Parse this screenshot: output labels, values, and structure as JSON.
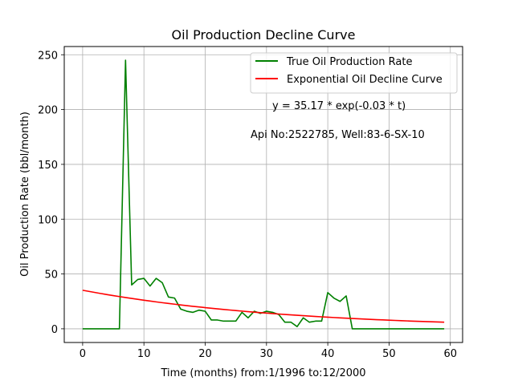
{
  "chart_data": {
    "type": "line",
    "title": "Oil Production Decline Curve",
    "xlabel": "Time (months) from:1/1996 to:12/2000",
    "ylabel": "Oil Production Rate (bbl/month)",
    "xlim": [
      -3,
      62
    ],
    "ylim": [
      -12.5,
      257.5
    ],
    "xticks": [
      0,
      10,
      20,
      30,
      40,
      50,
      60
    ],
    "yticks": [
      0,
      50,
      100,
      150,
      200,
      250
    ],
    "grid": true,
    "legend_position": "top-right",
    "annotations": [
      "y = 35.17 * exp(-0.03 * t)",
      "Api No:2522785, Well:83-6-SX-10"
    ],
    "fit": {
      "a": 35.17,
      "b": -0.03
    },
    "series": [
      {
        "name": "True Oil Production Rate",
        "color": "#008000",
        "x": [
          0,
          1,
          2,
          3,
          4,
          5,
          6,
          7,
          8,
          9,
          10,
          11,
          12,
          13,
          14,
          15,
          16,
          17,
          18,
          19,
          20,
          21,
          22,
          23,
          24,
          25,
          26,
          27,
          28,
          29,
          30,
          31,
          32,
          33,
          34,
          35,
          36,
          37,
          38,
          39,
          40,
          41,
          42,
          43,
          44,
          45,
          46,
          47,
          48,
          49,
          50,
          51,
          52,
          53,
          54,
          55,
          56,
          57,
          58,
          59
        ],
        "values": [
          0,
          0,
          0,
          0,
          0,
          0,
          0,
          245,
          40,
          45,
          46,
          39,
          46,
          42,
          29,
          28,
          18,
          16,
          15,
          17,
          16,
          8,
          8,
          7,
          7,
          7,
          15,
          10,
          16,
          14,
          16,
          15,
          13,
          6,
          6,
          2,
          10,
          6,
          7,
          7,
          33,
          28,
          25,
          30,
          0,
          0,
          0,
          0,
          0,
          0,
          0,
          0,
          0,
          0,
          0,
          0,
          0,
          0,
          0,
          0
        ]
      },
      {
        "name": "Exponential Oil Decline Curve",
        "color": "#ff0000",
        "x": [
          0,
          1,
          2,
          3,
          4,
          5,
          6,
          7,
          8,
          9,
          10,
          11,
          12,
          13,
          14,
          15,
          16,
          17,
          18,
          19,
          20,
          21,
          22,
          23,
          24,
          25,
          26,
          27,
          28,
          29,
          30,
          31,
          32,
          33,
          34,
          35,
          36,
          37,
          38,
          39,
          40,
          41,
          42,
          43,
          44,
          45,
          46,
          47,
          48,
          49,
          50,
          51,
          52,
          53,
          54,
          55,
          56,
          57,
          58,
          59
        ],
        "values": [
          35.17,
          34.13,
          33.13,
          32.15,
          31.2,
          30.28,
          29.39,
          28.52,
          27.68,
          26.86,
          26.06,
          25.29,
          24.54,
          23.82,
          23.12,
          22.43,
          21.77,
          21.13,
          20.5,
          19.9,
          19.31,
          18.74,
          18.19,
          17.65,
          17.13,
          16.62,
          16.13,
          15.65,
          15.19,
          14.74,
          14.31,
          13.88,
          13.47,
          13.08,
          12.69,
          12.31,
          11.95,
          11.6,
          11.25,
          10.92,
          10.6,
          10.28,
          9.98,
          9.69,
          9.4,
          9.12,
          8.85,
          8.59,
          8.34,
          8.09,
          7.85,
          7.62,
          7.39,
          7.17,
          6.96,
          6.76,
          6.56,
          6.36,
          6.18,
          5.99
        ]
      }
    ]
  }
}
